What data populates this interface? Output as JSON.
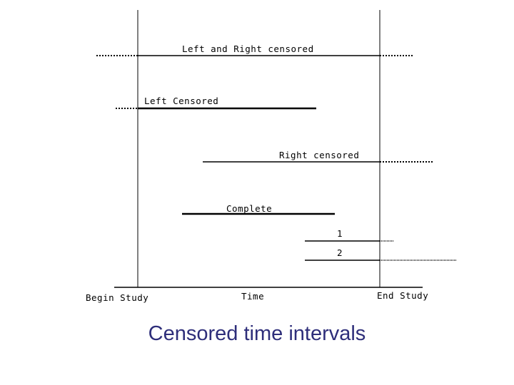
{
  "diagram": {
    "labels": {
      "left_and_right_censored": "Left and Right censored",
      "left_censored": "Left Censored",
      "right_censored": "Right censored",
      "complete": "Complete",
      "case_1": "1",
      "case_2": "2",
      "begin_study": "Begin Study",
      "time": "Time",
      "end_study": "End Study"
    },
    "colors": {
      "line": "#000000",
      "caption": "#2e2e7a"
    }
  },
  "caption": "Censored time intervals"
}
